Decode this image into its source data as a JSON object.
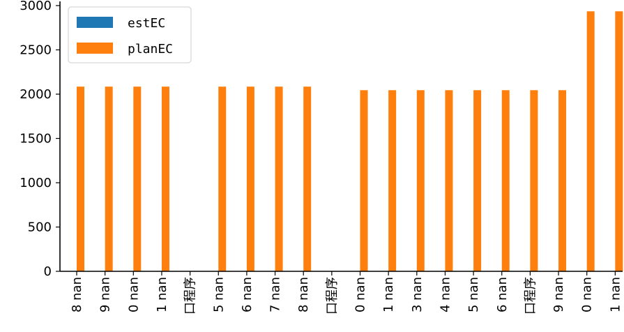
{
  "chart_data": {
    "type": "bar",
    "categories": [
      "8 nan",
      "9 nan",
      "0 nan",
      "1 nan",
      "口程序",
      "5 nan",
      "6 nan",
      "7 nan",
      "8 nan",
      "口程序",
      "0 nan",
      "1 nan",
      "3 nan",
      "4 nan",
      "5 nan",
      "6 nan",
      "口程序",
      "9 nan",
      "0 nan",
      "1 nan"
    ],
    "series": [
      {
        "name": "estEC",
        "color": "#1f77b4",
        "values": [
          0,
          0,
          0,
          0,
          0,
          0,
          0,
          0,
          0,
          0,
          0,
          0,
          0,
          0,
          0,
          0,
          0,
          0,
          0,
          0
        ]
      },
      {
        "name": "planEC",
        "color": "#ff7f0e",
        "values": [
          2085,
          2085,
          2085,
          2085,
          0,
          2085,
          2085,
          2085,
          2085,
          0,
          2045,
          2045,
          2045,
          2045,
          2045,
          2045,
          2045,
          2045,
          2935,
          2935
        ]
      }
    ],
    "yticks": [
      0,
      500,
      1000,
      1500,
      2000,
      2500,
      3000
    ],
    "ylim": [
      0,
      3000
    ],
    "grid": false,
    "legend_position": "top-left"
  }
}
